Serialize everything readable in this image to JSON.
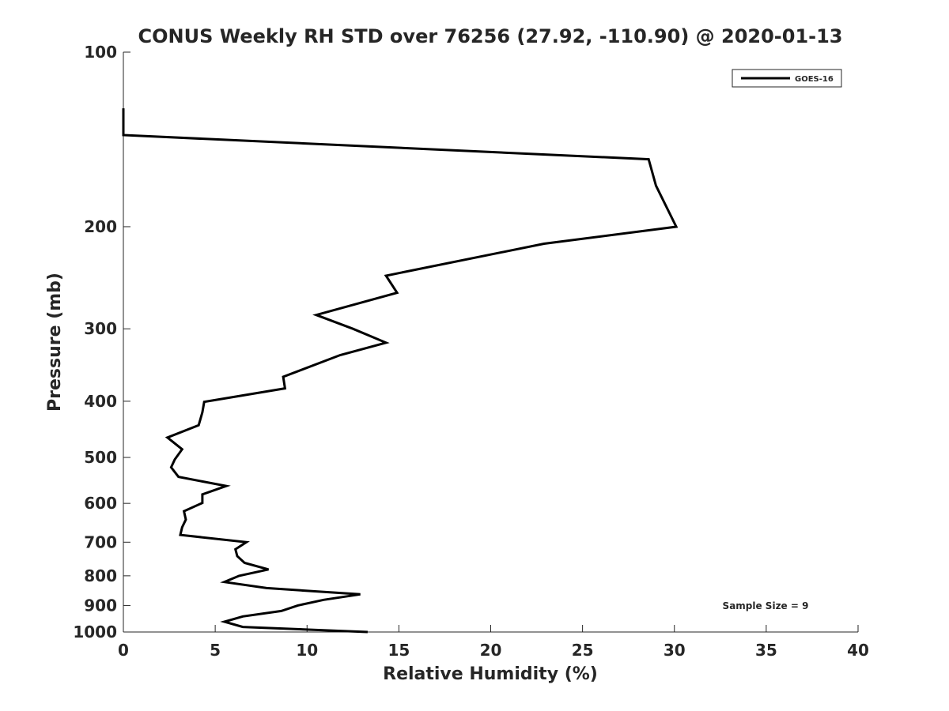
{
  "chart_data": {
    "type": "line",
    "title": "CONUS Weekly RH STD over 76256 (27.92, -110.90) @ 2020-01-13",
    "xlabel": "Relative Humidity (%)",
    "ylabel": "Pressure (mb)",
    "xlim": [
      0,
      40
    ],
    "ylim": [
      100,
      1000
    ],
    "y_scale": "log",
    "y_direction": "reversed",
    "xticks": [
      "0",
      "5",
      "10",
      "15",
      "20",
      "25",
      "30",
      "35",
      "40"
    ],
    "yticks": [
      "100",
      "200",
      "300",
      "400",
      "500",
      "600",
      "700",
      "800",
      "900",
      "1000"
    ],
    "grid": false,
    "legend_position": "top-right",
    "annotation": "Sample Size = 9",
    "series": [
      {
        "name": "GOES-16",
        "color": "#000000",
        "points": [
          [
            0.0,
            125
          ],
          [
            0.0,
            139
          ],
          [
            28.6,
            153
          ],
          [
            29.0,
            170
          ],
          [
            30.1,
            200
          ],
          [
            22.9,
            214
          ],
          [
            14.3,
            243
          ],
          [
            14.9,
            260
          ],
          [
            10.5,
            284
          ],
          [
            12.5,
            300
          ],
          [
            14.3,
            317
          ],
          [
            11.8,
            333
          ],
          [
            8.7,
            363
          ],
          [
            8.8,
            380
          ],
          [
            4.4,
            401
          ],
          [
            4.3,
            418
          ],
          [
            4.1,
            440
          ],
          [
            2.4,
            462
          ],
          [
            3.2,
            484
          ],
          [
            2.8,
            504
          ],
          [
            2.6,
            520
          ],
          [
            3.0,
            540
          ],
          [
            5.6,
            560
          ],
          [
            4.3,
            579
          ],
          [
            4.3,
            599
          ],
          [
            3.3,
            619
          ],
          [
            3.4,
            640
          ],
          [
            3.2,
            660
          ],
          [
            3.1,
            680
          ],
          [
            6.7,
            700
          ],
          [
            6.1,
            720
          ],
          [
            6.2,
            740
          ],
          [
            6.6,
            760
          ],
          [
            7.9,
            780
          ],
          [
            6.3,
            800
          ],
          [
            5.5,
            820
          ],
          [
            7.8,
            840
          ],
          [
            12.9,
            861
          ],
          [
            10.9,
            880
          ],
          [
            9.5,
            900
          ],
          [
            8.6,
            920
          ],
          [
            6.5,
            940
          ],
          [
            5.5,
            960
          ],
          [
            6.5,
            980
          ],
          [
            13.3,
            1000
          ]
        ]
      }
    ]
  }
}
